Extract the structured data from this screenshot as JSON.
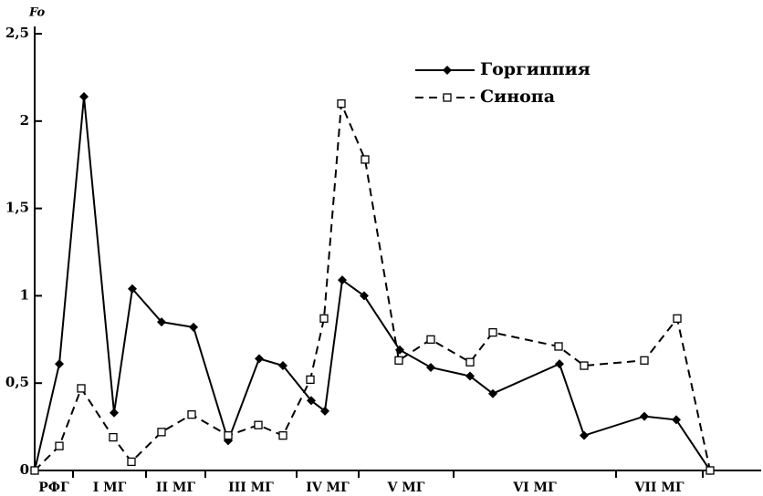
{
  "chart_data": {
    "type": "line",
    "y_label": "Fo",
    "ylim": [
      0,
      2.5
    ],
    "yticks": [
      0,
      {
        "value": 0.5,
        "label": "0,5"
      },
      1,
      {
        "value": 1.5,
        "label": "1,5"
      },
      2,
      {
        "value": 2.5,
        "label": "2,5"
      }
    ],
    "xlim": [
      0,
      790
    ],
    "periods": [
      {
        "label": "РФГ",
        "start": 0,
        "end": 42
      },
      {
        "label": "I МГ",
        "start": 42,
        "end": 122
      },
      {
        "label": "II МГ",
        "start": 122,
        "end": 187
      },
      {
        "label": "III МГ",
        "start": 187,
        "end": 287
      },
      {
        "label": "IV МГ",
        "start": 287,
        "end": 355
      },
      {
        "label": "V МГ",
        "start": 355,
        "end": 459
      },
      {
        "label": "VI МГ",
        "start": 459,
        "end": 637
      },
      {
        "label": "VII МГ",
        "start": 637,
        "end": 732
      }
    ],
    "legend": "upper right",
    "series": [
      {
        "name": "Горгиппия",
        "color": "#000000",
        "dash": false,
        "marker": "diamond",
        "x": [
          0,
          27,
          54,
          87,
          107,
          139,
          174,
          212,
          246,
          272,
          303,
          318,
          337,
          361,
          400,
          434,
          477,
          502,
          575,
          602,
          668,
          703,
          740
        ],
        "values": [
          0,
          0.61,
          2.14,
          0.33,
          1.04,
          0.85,
          0.82,
          0.17,
          0.64,
          0.6,
          0.4,
          0.34,
          1.09,
          1.0,
          0.69,
          0.59,
          0.54,
          0.44,
          0.61,
          0.2,
          0.31,
          0.29,
          0
        ]
      },
      {
        "name": "Синопа",
        "color": "#000000",
        "dash": true,
        "marker": "square",
        "x": [
          0,
          27,
          51,
          86,
          106,
          139,
          172,
          212,
          245,
          272,
          302,
          317,
          336,
          362,
          399,
          434,
          477,
          502,
          574,
          602,
          668,
          704,
          740
        ],
        "values": [
          0,
          0.14,
          0.47,
          0.19,
          0.05,
          0.22,
          0.32,
          0.2,
          0.26,
          0.2,
          0.52,
          0.87,
          2.1,
          1.78,
          0.63,
          0.75,
          0.62,
          0.79,
          0.71,
          0.6,
          0.63,
          0.87,
          0
        ]
      }
    ]
  }
}
